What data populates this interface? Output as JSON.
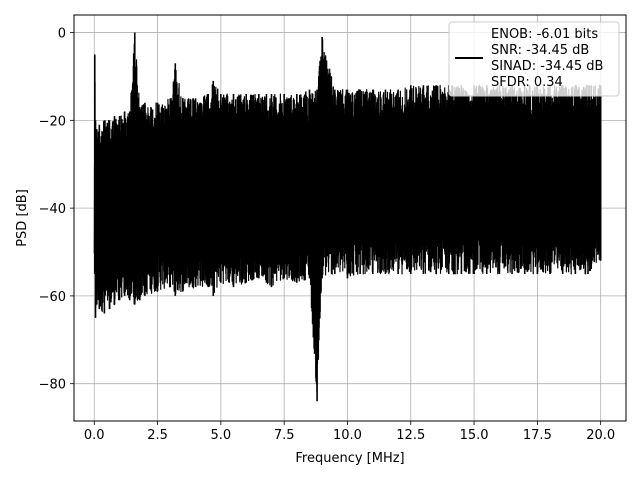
{
  "chart_data": {
    "type": "line",
    "title": "",
    "xlabel": "Frequency [MHz]",
    "ylabel": "PSD [dB]",
    "xlim": [
      -0.8,
      21.0
    ],
    "ylim": [
      -88.5,
      4.0
    ],
    "xticks": [
      0.0,
      2.5,
      5.0,
      7.5,
      10.0,
      12.5,
      15.0,
      17.5,
      20.0
    ],
    "xtick_labels": [
      "0.0",
      "2.5",
      "5.0",
      "7.5",
      "10.0",
      "12.5",
      "15.0",
      "17.5",
      "20.0"
    ],
    "yticks": [
      0,
      -20,
      -40,
      -60,
      -80
    ],
    "ytick_labels": [
      "0",
      "−20",
      "−40",
      "−60",
      "−80"
    ],
    "grid": true,
    "legend_position": "top-right",
    "series": [
      {
        "name": "ENOB: -6.01 bits\nSNR: -34.45 dB\nSINAD: -34.45 dB\nSFDR: 0.34",
        "color": "#000000",
        "x": [
          0.0,
          0.02,
          0.05,
          0.1,
          0.2,
          0.4,
          0.6,
          0.8,
          1.0,
          1.2,
          1.4,
          1.6,
          1.8,
          2.0,
          2.5,
          3.0,
          3.2,
          3.5,
          4.0,
          4.5,
          4.7,
          5.0,
          5.5,
          6.0,
          6.5,
          6.8,
          7.0,
          7.5,
          8.0,
          8.5,
          8.8,
          9.0,
          9.5,
          10.0,
          10.5,
          11.0,
          11.5,
          12.0,
          12.5,
          13.0,
          13.5,
          14.0,
          14.5,
          15.0,
          15.5,
          16.0,
          16.5,
          17.0,
          17.5,
          18.0,
          18.5,
          19.0,
          19.5,
          20.0
        ],
        "y_upper": [
          -45,
          -5,
          -20,
          -22,
          -21,
          -20,
          -20,
          -19,
          -19,
          -18,
          -18,
          0,
          -17,
          -16,
          -16,
          -15,
          -7,
          -15,
          -15,
          -14,
          -11,
          -14,
          -14,
          -14,
          -14,
          -14,
          -14,
          -14,
          -14,
          -13,
          -13,
          -1,
          -13,
          -13,
          -13,
          -13,
          -13,
          -13,
          -12,
          -12,
          -12,
          -12,
          -12,
          -12,
          -12,
          -12,
          -12,
          -12,
          -12,
          -12,
          -12,
          -12,
          -12,
          -12
        ],
        "y_lower": [
          -45,
          -55,
          -65,
          -62,
          -63,
          -64,
          -63,
          -62,
          -61,
          -60,
          -61,
          -62,
          -61,
          -60,
          -59,
          -58,
          -60,
          -59,
          -58,
          -58,
          -60,
          -57,
          -58,
          -57,
          -56,
          -57,
          -58,
          -56,
          -57,
          -56,
          -84,
          -56,
          -55,
          -56,
          -55,
          -55,
          -55,
          -55,
          -55,
          -55,
          -55,
          -55,
          -55,
          -55,
          -55,
          -55,
          -55,
          -55,
          -55,
          -55,
          -55,
          -55,
          -55,
          -52
        ]
      }
    ]
  }
}
